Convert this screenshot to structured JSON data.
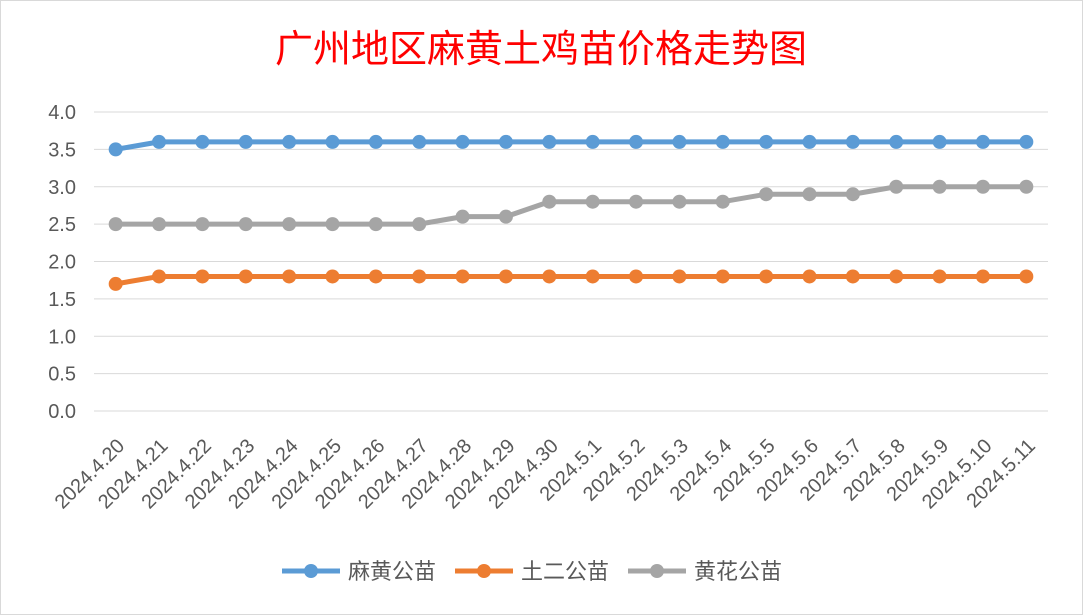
{
  "chart_data": {
    "type": "line",
    "title": "广州地区麻黄土鸡苗价格走势图",
    "title_color": "#ff0000",
    "xlabel": "",
    "ylabel": "",
    "categories": [
      "2024.4.20",
      "2024.4.21",
      "2024.4.22",
      "2024.4.23",
      "2024.4.24",
      "2024.4.25",
      "2024.4.26",
      "2024.4.27",
      "2024.4.28",
      "2024.4.29",
      "2024.4.30",
      "2024.5.1",
      "2024.5.2",
      "2024.5.3",
      "2024.5.4",
      "2024.5.5",
      "2024.5.6",
      "2024.5.7",
      "2024.5.8",
      "2024.5.9",
      "2024.5.10",
      "2024.5.11"
    ],
    "ylim": [
      0,
      4
    ],
    "yticks": [
      "0.0",
      "0.5",
      "1.0",
      "1.5",
      "2.0",
      "2.5",
      "3.0",
      "3.5",
      "4.0"
    ],
    "grid": true,
    "legend_position": "bottom",
    "series": [
      {
        "name": "麻黄公苗",
        "color": "#5b9bd5",
        "values": [
          3.5,
          3.6,
          3.6,
          3.6,
          3.6,
          3.6,
          3.6,
          3.6,
          3.6,
          3.6,
          3.6,
          3.6,
          3.6,
          3.6,
          3.6,
          3.6,
          3.6,
          3.6,
          3.6,
          3.6,
          3.6,
          3.6
        ]
      },
      {
        "name": "土二公苗",
        "color": "#ed7d31",
        "values": [
          1.7,
          1.8,
          1.8,
          1.8,
          1.8,
          1.8,
          1.8,
          1.8,
          1.8,
          1.8,
          1.8,
          1.8,
          1.8,
          1.8,
          1.8,
          1.8,
          1.8,
          1.8,
          1.8,
          1.8,
          1.8,
          1.8
        ]
      },
      {
        "name": "黄花公苗",
        "color": "#a5a5a5",
        "values": [
          2.5,
          2.5,
          2.5,
          2.5,
          2.5,
          2.5,
          2.5,
          2.5,
          2.6,
          2.6,
          2.8,
          2.8,
          2.8,
          2.8,
          2.8,
          2.9,
          2.9,
          2.9,
          3.0,
          3.0,
          3.0,
          3.0
        ]
      }
    ]
  }
}
